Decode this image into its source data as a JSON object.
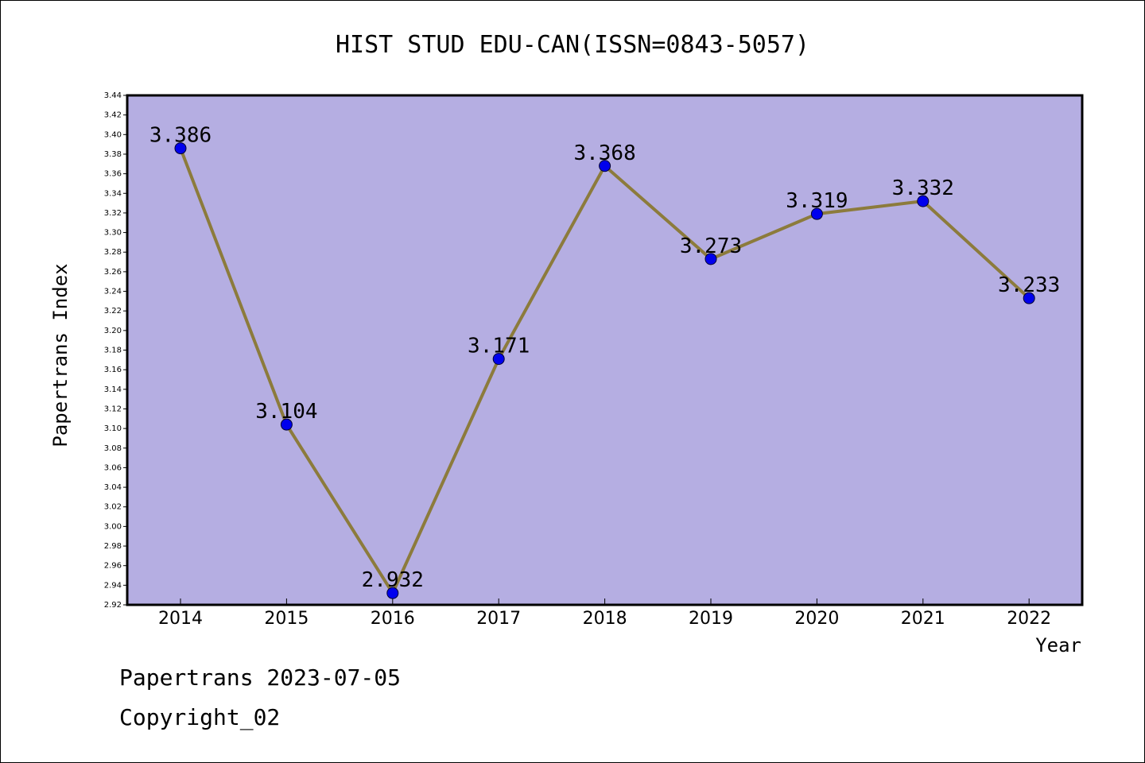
{
  "chart_data": {
    "type": "line",
    "title": "HIST STUD EDU-CAN(ISSN=0843-5057)",
    "xlabel": "Year",
    "ylabel": "Papertrans Index",
    "categories": [
      "2014",
      "2015",
      "2016",
      "2017",
      "2018",
      "2019",
      "2020",
      "2021",
      "2022"
    ],
    "values": [
      3.386,
      3.104,
      2.932,
      3.171,
      3.368,
      3.273,
      3.319,
      3.332,
      3.233
    ],
    "data_labels": [
      "3.386",
      "3.104",
      "2.932",
      "3.171",
      "3.368",
      "3.273",
      "3.319",
      "3.332",
      "3.233"
    ],
    "ylim": [
      2.92,
      3.44
    ],
    "ytick_step": 0.02,
    "grid": false,
    "colors": {
      "plot_background": "#b5aee2",
      "line": "#8c7b3c",
      "marker": "#0000ee"
    }
  },
  "footer": {
    "date_text": "Papertrans 2023-07-05",
    "copyright_text": "Copyright_02"
  }
}
